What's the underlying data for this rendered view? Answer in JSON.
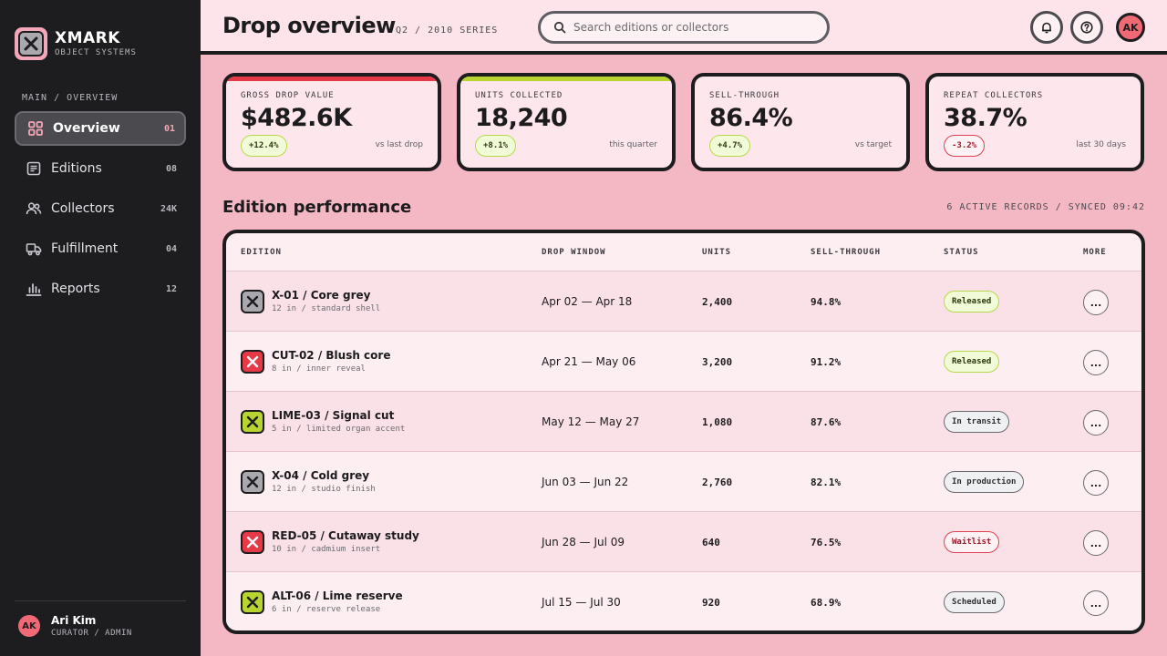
{
  "brand": {
    "name": "XMARK",
    "subtitle": "OBJECT SYSTEMS"
  },
  "sidebar": {
    "section_label": "MAIN / OVERVIEW",
    "items": [
      {
        "label": "Overview",
        "count": "01",
        "icon": "grid-icon",
        "active": true
      },
      {
        "label": "Editions",
        "count": "08",
        "icon": "document-icon",
        "active": false
      },
      {
        "label": "Collectors",
        "count": "24K",
        "icon": "users-icon",
        "active": false
      },
      {
        "label": "Fulfillment",
        "count": "04",
        "icon": "truck-icon",
        "active": false
      },
      {
        "label": "Reports",
        "count": "12",
        "icon": "bar-chart-icon",
        "active": false
      }
    ],
    "user": {
      "initials": "AK",
      "name": "Ari Kim",
      "role": "CURATOR / ADMIN"
    }
  },
  "header": {
    "title": "Drop overview",
    "subtitle": "Q2 / 2010 SERIES",
    "search_placeholder": "Search editions or collectors",
    "avatar_initials": "AK"
  },
  "kpis": [
    {
      "label": "GROSS DROP VALUE",
      "value": "$482.6K",
      "delta": "+12.4%",
      "note": "vs last drop",
      "trend": "up",
      "accent": "#e63946"
    },
    {
      "label": "UNITS COLLECTED",
      "value": "18,240",
      "delta": "+8.1%",
      "note": "this quarter",
      "trend": "up",
      "accent": "#b7d430"
    },
    {
      "label": "SELL-THROUGH",
      "value": "86.4%",
      "delta": "+4.7%",
      "note": "vs target",
      "trend": "up",
      "accent": ""
    },
    {
      "label": "REPEAT COLLECTORS",
      "value": "38.7%",
      "delta": "-3.2%",
      "note": "last 30 days",
      "trend": "down",
      "accent": ""
    }
  ],
  "table": {
    "title": "Edition performance",
    "meta": "6 ACTIVE RECORDS / SYNCED 09:42",
    "columns": [
      "EDITION",
      "DROP WINDOW",
      "UNITS",
      "SELL-THROUGH",
      "STATUS",
      "MORE"
    ],
    "rows": [
      {
        "name": "X-01 / Core grey",
        "meta": "12 in / standard shell",
        "window": "Apr 02 — Apr 18",
        "units": "2,400",
        "sell": "94.8%",
        "status": "Released",
        "status_kind": "released",
        "swatch": "#a9a8ae"
      },
      {
        "name": "CUT-02 / Blush core",
        "meta": "8 in / inner reveal",
        "window": "Apr 21 — May 06",
        "units": "3,200",
        "sell": "91.2%",
        "status": "Released",
        "status_kind": "released",
        "swatch": "#e63946"
      },
      {
        "name": "LIME-03 / Signal cut",
        "meta": "5 in / limited organ accent",
        "window": "May 12 — May 27",
        "units": "1,080",
        "sell": "87.6%",
        "status": "In transit",
        "status_kind": "transit",
        "swatch": "#b7d430"
      },
      {
        "name": "X-04 / Cold grey",
        "meta": "12 in / studio finish",
        "window": "Jun 03 — Jun 22",
        "units": "2,760",
        "sell": "82.1%",
        "status": "In production",
        "status_kind": "production",
        "swatch": "#a9a8ae"
      },
      {
        "name": "RED-05 / Cutaway study",
        "meta": "10 in / cadmium insert",
        "window": "Jun 28 — Jul 09",
        "units": "640",
        "sell": "76.5%",
        "status": "Waitlist",
        "status_kind": "waitlist",
        "swatch": "#e63946"
      },
      {
        "name": "ALT-06 / Lime reserve",
        "meta": "6 in / reserve release",
        "window": "Jul 15 — Jul 30",
        "units": "920",
        "sell": "68.9%",
        "status": "Scheduled",
        "status_kind": "scheduled",
        "swatch": "#b7d430"
      }
    ],
    "more_label": "..."
  }
}
